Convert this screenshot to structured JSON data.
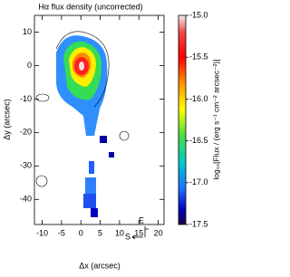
{
  "chart_data": {
    "type": "image",
    "title": "Hα flux density (uncorrected)",
    "x_label": "Δx (arcsec)",
    "y_label": "Δy (arcsec)",
    "colorbar_label": "log₁₀[Flux / (erg s⁻¹ cm⁻² arcsec⁻²)]",
    "xlim": [
      -12,
      21.5
    ],
    "xticks": [
      -10,
      -5,
      0,
      5,
      10,
      15,
      20
    ],
    "ylim": [
      -47.5,
      15
    ],
    "yticks": [
      -40,
      -30,
      -20,
      -10,
      0,
      10
    ],
    "clim": [
      -17.5,
      -15
    ],
    "cticks": [
      {
        "value": -15,
        "label": "-15.0"
      },
      {
        "value": -15.5,
        "label": "-15.5"
      },
      {
        "value": -16,
        "label": "-16.0"
      },
      {
        "value": -16.5,
        "label": "-16.5"
      },
      {
        "value": -17,
        "label": "-17.0"
      },
      {
        "value": -17.5,
        "label": "-17.5"
      }
    ],
    "annotations": [
      "E",
      "S"
    ]
  }
}
